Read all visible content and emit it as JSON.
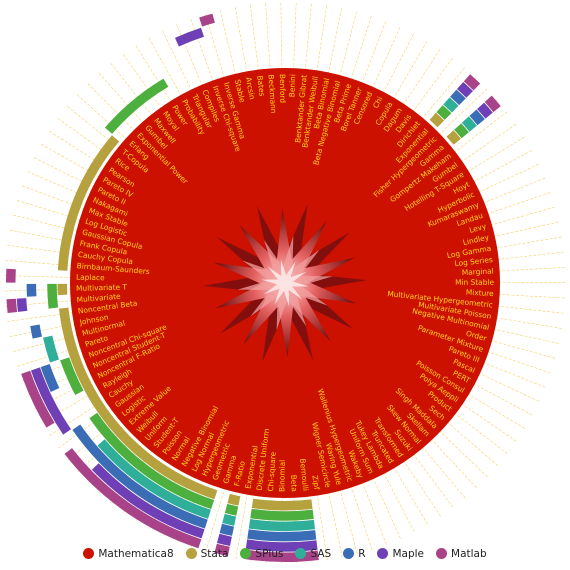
{
  "chart_data": {
    "type": "radial",
    "legend": [
      {
        "name": "Mathematica8",
        "color": "#cc1100"
      },
      {
        "name": "Stata",
        "color": "#b5a13d"
      },
      {
        "name": "SPlus",
        "color": "#4caf3e"
      },
      {
        "name": "SAS",
        "color": "#2faf9a"
      },
      {
        "name": "R",
        "color": "#3a6db5"
      },
      {
        "name": "Maple",
        "color": "#6f3fb5"
      },
      {
        "name": "Matlab",
        "color": "#a84289"
      }
    ],
    "legend_position": "bottom",
    "distributions": [
      "Laplace",
      "Birnbaum-Saunders",
      "Cauchy Copula",
      "Frank Copula",
      "Gaussian Copula",
      "Log Logistic",
      "Max Stable",
      "Nakagami",
      "Pareto II",
      "Pareto IV",
      "Pearson",
      "Rice",
      "T-Copula",
      "Erlang",
      "Exponential Power",
      "Gumbel",
      "Maxwell",
      "Moyal",
      "Power",
      "Probability",
      "Triangular",
      "Compiles",
      "Inverse Chi-square",
      "Inverse Gamma",
      "Stable",
      "Arcsin",
      "Bates",
      "Beckmann",
      "Benford",
      "Benini",
      "Benktander Gibrat",
      "Benktander Weibull",
      "Beta Binomial",
      "Beta Negative Binomial",
      "Beta Prime",
      "Borel Tanner",
      "Censored",
      "Chi",
      "Copula",
      "Dagum",
      "Davis",
      "Dirichlet",
      "Exponential",
      "Fisher Hypergeometric",
      "Gamma",
      "Gompertz Makeham",
      "Gumbel",
      "Hotelling T-Square",
      "Hoyt",
      "Hyperbolic",
      "Kumaraswamy",
      "Landau",
      "Levy",
      "Lindley",
      "Log Gamma",
      "Log Series",
      "Marginal",
      "Min Stable",
      "Mixture",
      "Multivariate Hypergeometric",
      "Multivariate Poisson",
      "Negative Multinomial",
      "Order",
      "Parameter Mixture",
      "Pareto III",
      "Pascal",
      "PERT",
      "Poisson Consul",
      "Polya Aeppli",
      "Product",
      "Sech",
      "Singh Maddala",
      "Skellam",
      "Skew Normal",
      "Suzuki",
      "Transformed",
      "Truncated",
      "Tukey Lambda",
      "Uniform Sum",
      "Wakeby",
      "Wallenius Hypergeometric",
      "Waring Yule",
      "Wigner Semicircle",
      "Zipf",
      "Bernoulli",
      "Beta",
      "Binomial",
      "Chi-square",
      "Discrete Uniform",
      "Exponential",
      "F-Ratio",
      "Gamma",
      "Geometric",
      "Hypergeometric",
      "Log Normal",
      "Negative Binomial",
      "Normal",
      "Poisson",
      "Student-T",
      "Uniform",
      "Weibull",
      "Extreme Value",
      "Logistic",
      "Gaussian",
      "Cauchy",
      "Rayleigh",
      "Noncentral F-Ratio",
      "Noncentral Student-T",
      "Noncentral Chi-square",
      "Pareto",
      "Multinormal",
      "Johnson",
      "Noncentral Beta",
      "Multivariate",
      "Multivariate T"
    ],
    "support_arcs": [
      {
        "series": "Stata",
        "distributions": [
          "Birnbaum-Saunders",
          "Cauchy Copula",
          "Frank Copula",
          "Gaussian Copula",
          "Log Logistic",
          "Max Stable",
          "Nakagami",
          "Pareto II",
          "Pareto IV",
          "Pearson",
          "Rice",
          "T-Copula",
          "Bernoulli",
          "Beta",
          "Binomial",
          "Chi-square",
          "Discrete Uniform",
          "Exponential",
          "F-Ratio",
          "Gamma",
          "Geometric",
          "Hypergeometric",
          "Log Normal",
          "Negative Binomial",
          "Normal",
          "Poisson",
          "Student-T",
          "Uniform",
          "Weibull",
          "Extreme Value",
          "Logistic",
          "Gaussian",
          "Cauchy",
          "Rayleigh",
          "Noncentral F-Ratio",
          "Noncentral Student-T",
          "Noncentral Chi-square",
          "Pareto",
          "Multinormal",
          "Johnson",
          "Noncentral Beta",
          "Multivariate T"
        ]
      },
      {
        "series": "SPlus",
        "distributions": [
          "Erlang",
          "Exponential Power",
          "Gumbel",
          "Maxwell",
          "Moyal",
          "Power",
          "Bernoulli",
          "Beta",
          "Binomial",
          "Chi-square",
          "Discrete Uniform",
          "Exponential",
          "F-Ratio",
          "Gamma",
          "Geometric",
          "Hypergeometric",
          "Log Normal",
          "Negative Binomial",
          "Normal",
          "Poisson",
          "Student-T",
          "Uniform",
          "Weibull",
          "Extreme Value",
          "Logistic",
          "Gaussian",
          "Noncentral F-Ratio",
          "Noncentral Student-T",
          "Noncentral Chi-square",
          "Multivariate",
          "Multivariate T"
        ]
      },
      {
        "series": "SAS",
        "distributions": [
          "Bernoulli",
          "Beta",
          "Binomial",
          "Chi-square",
          "Discrete Uniform",
          "Exponential",
          "F-Ratio",
          "Gamma",
          "Geometric",
          "Hypergeometric",
          "Log Normal",
          "Negative Binomial",
          "Normal",
          "Poisson",
          "Student-T",
          "Uniform",
          "Weibull",
          "Extreme Value",
          "Pareto",
          "Multinormal"
        ]
      },
      {
        "series": "R",
        "distributions": [
          "Bernoulli",
          "Beta",
          "Binomial",
          "Chi-square",
          "Discrete Uniform",
          "Exponential",
          "F-Ratio",
          "Gamma",
          "Geometric",
          "Hypergeometric",
          "Log Normal",
          "Negative Binomial",
          "Normal",
          "Poisson",
          "Student-T",
          "Uniform",
          "Weibull",
          "Extreme Value",
          "Logistic",
          "Gaussian",
          "Noncentral Student-T",
          "Noncentral Chi-square",
          "Johnson",
          "Multivariate T"
        ]
      },
      {
        "series": "Maple",
        "distributions": [
          "Bernoulli",
          "Beta",
          "Binomial",
          "Chi-square",
          "Discrete Uniform",
          "Exponential",
          "F-Ratio",
          "Gamma",
          "Geometric",
          "Hypergeometric",
          "Log Normal",
          "Negative Binomial",
          "Normal",
          "Poisson",
          "Student-T",
          "Uniform",
          "Weibull",
          "Cauchy",
          "Rayleigh",
          "Noncentral F-Ratio",
          "Noncentral Student-T",
          "Noncentral Chi-square",
          "Multivariate",
          "Compiles",
          "Inverse Chi-square"
        ]
      },
      {
        "series": "Matlab",
        "distributions": [
          "Bernoulli",
          "Beta",
          "Binomial",
          "Chi-square",
          "Discrete Uniform",
          "Exponential",
          "F-Ratio",
          "Gamma",
          "Geometric",
          "Hypergeometric",
          "Log Normal",
          "Negative Binomial",
          "Normal",
          "Poisson",
          "Student-T",
          "Uniform",
          "Weibull",
          "Extreme Value",
          "Logistic",
          "Rayleigh",
          "Noncentral F-Ratio",
          "Noncentral Student-T",
          "Noncentral Chi-square",
          "Multivariate",
          "Laplace",
          "Inverse Gamma"
        ]
      }
    ]
  }
}
